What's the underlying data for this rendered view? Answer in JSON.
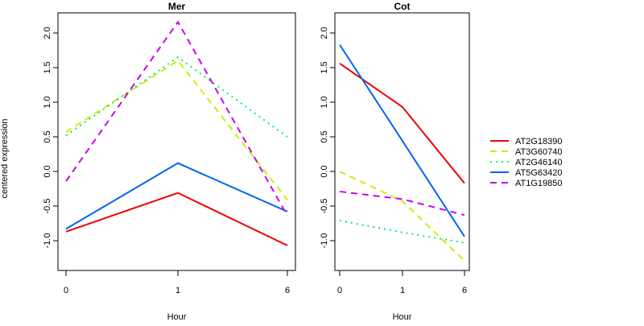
{
  "chart_data": [
    {
      "type": "line",
      "title": "Mer",
      "xlabel": "Hour",
      "ylabel": "centered expression",
      "categories": [
        "0",
        "1",
        "6"
      ],
      "ylim": [
        -1.4,
        2.3
      ],
      "yticks": [
        "-1.0",
        "-0.5",
        "0.0",
        "0.5",
        "1.0",
        "1.5",
        "2.0"
      ],
      "ytick_values": [
        -1.0,
        -0.5,
        0.0,
        0.5,
        1.0,
        1.5,
        2.0
      ],
      "series": [
        {
          "name": "AT2G18390",
          "color": "#ee0000",
          "dash": "solid",
          "values": [
            -0.87,
            -0.31,
            -1.07
          ]
        },
        {
          "name": "AT3G60740",
          "color": "#ccee00",
          "dash": "dashed",
          "values": [
            0.57,
            1.6,
            -0.41
          ]
        },
        {
          "name": "AT2G46140",
          "color": "#00ee66",
          "dash": "dotted",
          "values": [
            0.52,
            1.65,
            0.5
          ]
        },
        {
          "name": "AT5G63420",
          "color": "#0066ee",
          "dash": "solid",
          "values": [
            -0.83,
            0.12,
            -0.58
          ]
        },
        {
          "name": "AT1G19850",
          "color": "#cc00ee",
          "dash": "dashed",
          "values": [
            -0.14,
            2.16,
            -0.64
          ]
        }
      ]
    },
    {
      "type": "line",
      "title": "Cot",
      "xlabel": "Hour",
      "ylabel": "",
      "categories": [
        "0",
        "1",
        "6"
      ],
      "ylim": [
        -1.4,
        2.3
      ],
      "yticks": [
        "-1.0",
        "-0.5",
        "0.0",
        "0.5",
        "1.0",
        "1.5",
        "2.0"
      ],
      "ytick_values": [
        -1.0,
        -0.5,
        0.0,
        0.5,
        1.0,
        1.5,
        2.0
      ],
      "series": [
        {
          "name": "AT2G18390",
          "color": "#ee0000",
          "dash": "solid",
          "values": [
            1.56,
            0.93,
            -0.17
          ]
        },
        {
          "name": "AT3G60740",
          "color": "#ccee00",
          "dash": "dashed",
          "values": [
            0.0,
            -0.43,
            -1.29
          ]
        },
        {
          "name": "AT2G46140",
          "color": "#00ee66",
          "dash": "dotted",
          "values": [
            -0.71,
            -0.88,
            -1.03
          ]
        },
        {
          "name": "AT5G63420",
          "color": "#0066ee",
          "dash": "solid",
          "values": [
            1.83,
            0.44,
            -0.94
          ]
        },
        {
          "name": "AT1G19850",
          "color": "#cc00ee",
          "dash": "dashed",
          "values": [
            -0.29,
            -0.4,
            -0.63
          ]
        }
      ]
    }
  ],
  "legend": {
    "placement": "right",
    "entries": [
      "AT2G18390",
      "AT3G60740",
      "AT2G46140",
      "AT5G63420",
      "AT1G19850"
    ]
  }
}
